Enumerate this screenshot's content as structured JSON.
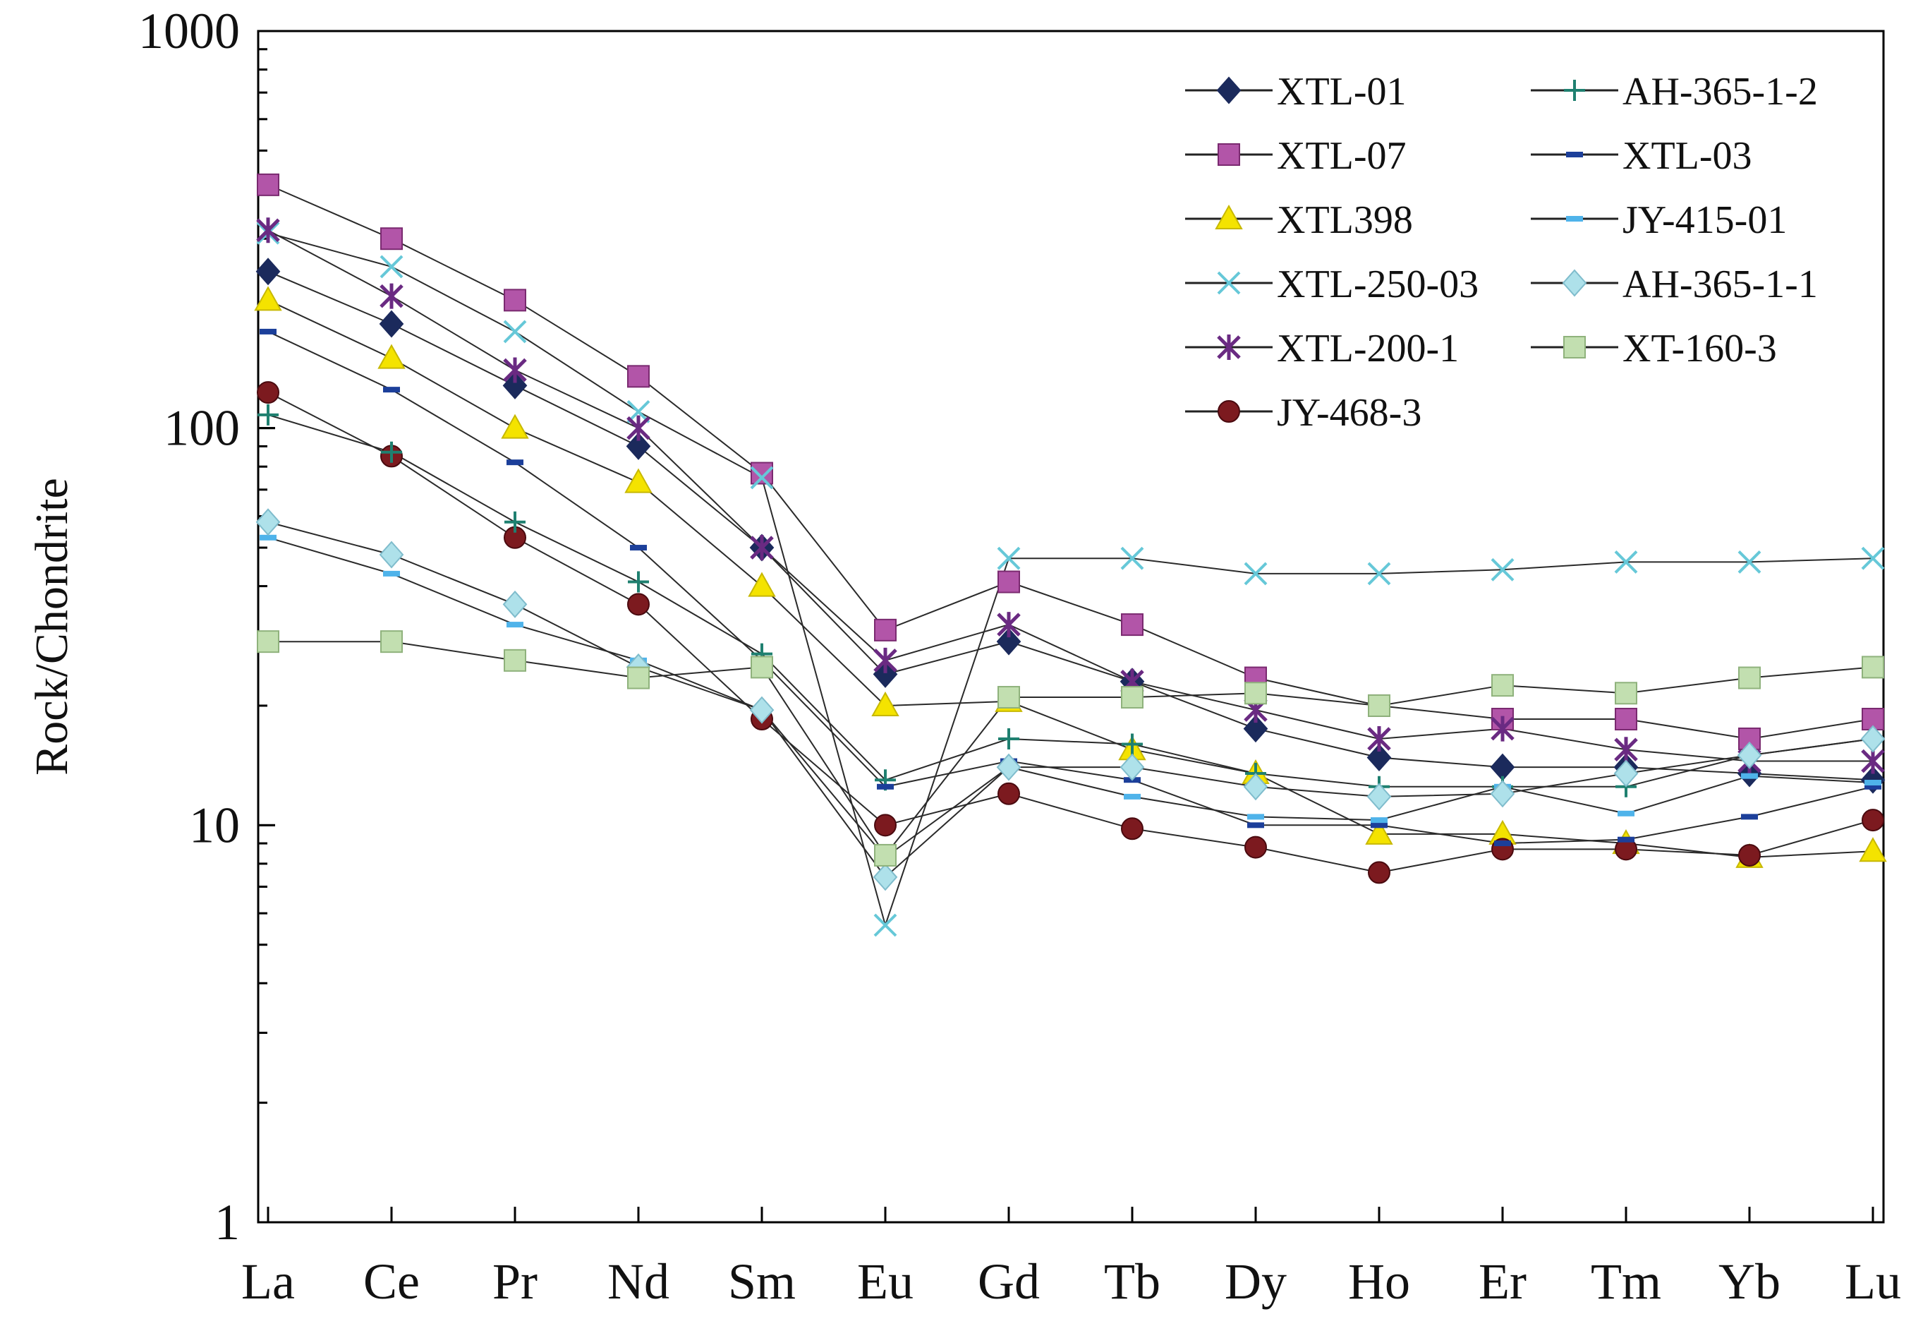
{
  "chart_data": {
    "type": "line",
    "title": "",
    "xlabel": "",
    "ylabel": "Rock/Chondrite",
    "yscale": "log",
    "ylim": [
      1,
      1000
    ],
    "yticks": [
      {
        "value": 1,
        "label": "1"
      },
      {
        "value": 10,
        "label": "10"
      },
      {
        "value": 100,
        "label": "100"
      },
      {
        "value": 1000,
        "label": "1000"
      }
    ],
    "grid": false,
    "legend_position": "top-right",
    "categories": [
      "La",
      "Ce",
      "Pr",
      "Nd",
      "Sm",
      "Eu",
      "Gd",
      "Tb",
      "Dy",
      "Ho",
      "Er",
      "Tm",
      "Yb",
      "Lu"
    ],
    "series": [
      {
        "name": "XTL-01",
        "marker": "diamond-filled",
        "color": "#1b2a5c",
        "values": [
          248,
          183,
          128,
          90,
          50,
          24,
          29,
          23,
          17.5,
          14.8,
          14,
          14,
          13.5,
          13
        ]
      },
      {
        "name": "XTL-07",
        "marker": "square-filled",
        "color": "#b255a8",
        "values": [
          410,
          300,
          210,
          135,
          77,
          31,
          41,
          32,
          23.5,
          20,
          18.5,
          18.5,
          16.5,
          18.5
        ]
      },
      {
        "name": "XTL398",
        "marker": "triangle-filled",
        "color": "#f4e300",
        "values": [
          210,
          150,
          100,
          73,
          40,
          20,
          20.5,
          15.5,
          13.5,
          9.5,
          9.5,
          9,
          8.3,
          8.6
        ]
      },
      {
        "name": "XTL-250-03",
        "marker": "x",
        "color": "#66c8d8",
        "values": [
          310,
          255,
          175,
          110,
          75,
          5.6,
          47,
          47,
          43,
          43,
          44,
          46,
          46,
          47
        ]
      },
      {
        "name": "XTL-200-1",
        "marker": "star",
        "color": "#6a2a82",
        "values": [
          315,
          215,
          140,
          100,
          50,
          26,
          32,
          23,
          19.5,
          16.5,
          17.5,
          15.5,
          14.5,
          14.5
        ]
      },
      {
        "name": "JY-468-3",
        "marker": "circle-filled",
        "color": "#7c1a1f",
        "values": [
          123,
          85,
          53,
          36,
          18.5,
          10,
          12,
          9.8,
          8.8,
          7.6,
          8.7,
          8.7,
          8.4,
          10.3
        ]
      },
      {
        "name": "AH-365-1-2",
        "marker": "plus",
        "color": "#1f8070",
        "values": [
          108,
          87,
          58,
          41,
          27,
          13,
          16.5,
          16,
          13.5,
          12.5,
          12.5,
          12.5,
          15,
          16.5
        ]
      },
      {
        "name": "XTL-03",
        "marker": "dash",
        "color": "#1c3f9a",
        "values": [
          175,
          125,
          82,
          50,
          26,
          12.5,
          14.5,
          13,
          10,
          10,
          9,
          9.2,
          10.5,
          12.5
        ]
      },
      {
        "name": "JY-415-01",
        "marker": "dash",
        "color": "#4fb3ea",
        "values": [
          53,
          43,
          32,
          26,
          19.5,
          8.3,
          14,
          11.8,
          10.5,
          10.3,
          12.5,
          10.7,
          13.3,
          12.8
        ]
      },
      {
        "name": "AH-365-1-1",
        "marker": "diamond-open",
        "color": "#aee1ea",
        "values": [
          58,
          48,
          36,
          25,
          19.5,
          7.4,
          14,
          14,
          12.5,
          11.8,
          12,
          13.5,
          15,
          16.5
        ]
      },
      {
        "name": "XT-160-3",
        "marker": "square-open",
        "color": "#c2dfb0",
        "values": [
          29,
          29,
          26,
          23.5,
          25,
          8.4,
          21,
          21,
          21.5,
          20,
          22.5,
          21.5,
          23.5,
          25
        ]
      }
    ]
  }
}
